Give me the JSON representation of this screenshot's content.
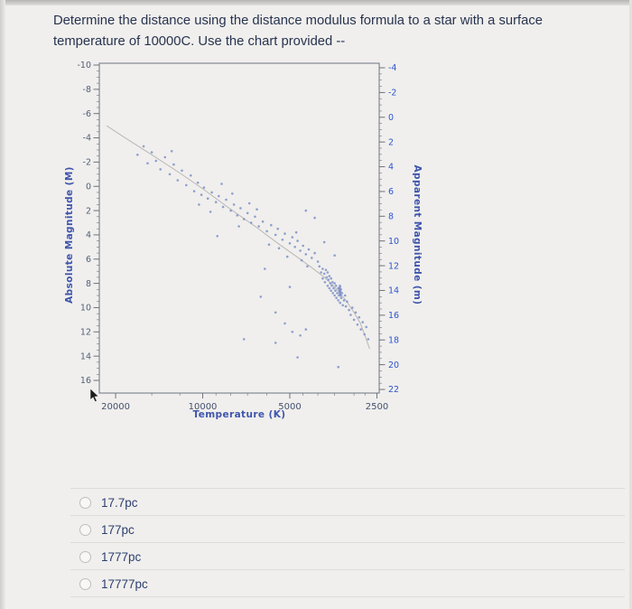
{
  "page": {
    "question": {
      "line1": "Determine the distance using the distance modulus formula to a star with a surface",
      "line2": "temperature of 10000C. Use the chart provided --"
    },
    "options": [
      {
        "label": "17.7pc"
      },
      {
        "label": "177pc"
      },
      {
        "label": "1777pc"
      },
      {
        "label": "17777pc"
      }
    ]
  },
  "chart_data": {
    "type": "scatter",
    "title": "",
    "x_axis": {
      "label": "Temperature (K)",
      "scale": "log",
      "reversed": true,
      "ticks": [
        20000,
        10000,
        5000,
        2500
      ],
      "minor_ticks": [
        15000,
        12000,
        9000,
        8000,
        7000,
        6000,
        4500,
        4000,
        3500,
        3000,
        2750
      ],
      "range": [
        22770,
        2455
      ]
    },
    "y_left": {
      "label": "Absolute Magnitude (M)",
      "ticks": [
        -10,
        -8,
        -6,
        -4,
        -2,
        0,
        2,
        4,
        6,
        8,
        10,
        12,
        14,
        16
      ],
      "range": [
        -10,
        16
      ]
    },
    "y_right": {
      "label": "Apparent Magnitude (m)",
      "ticks": [
        -4,
        -2,
        0,
        2,
        4,
        6,
        8,
        10,
        12,
        14,
        16,
        18,
        20,
        22
      ],
      "range": [
        -4,
        22
      ]
    },
    "colors": {
      "axis": "#6d7380",
      "left_ticks": "#545f78",
      "right_ticks": "#2f55cf",
      "x_ticks": "#44506e",
      "titles": "#3f55ad",
      "points": "#7e90c8",
      "line": "#b3b1ae"
    },
    "points": [
      [
        16800,
        -2.6
      ],
      [
        16000,
        -3.3
      ],
      [
        15500,
        -1.9
      ],
      [
        15000,
        -2.8
      ],
      [
        14500,
        -2.1
      ],
      [
        14000,
        -1.4
      ],
      [
        13500,
        -2.4
      ],
      [
        13000,
        -1.0
      ],
      [
        12600,
        -1.8
      ],
      [
        12200,
        -0.5
      ],
      [
        11800,
        -1.3
      ],
      [
        11400,
        -0.1
      ],
      [
        11000,
        -0.9
      ],
      [
        10700,
        0.4
      ],
      [
        10400,
        -0.3
      ],
      [
        10100,
        0.7
      ],
      [
        9900,
        0.1
      ],
      [
        9600,
        1.0
      ],
      [
        9300,
        0.5
      ],
      [
        9000,
        1.3
      ],
      [
        8800,
        0.8
      ],
      [
        8500,
        1.7
      ],
      [
        8300,
        1.1
      ],
      [
        8000,
        2.0
      ],
      [
        7800,
        1.5
      ],
      [
        7600,
        2.4
      ],
      [
        7400,
        1.8
      ],
      [
        7200,
        2.7
      ],
      [
        7000,
        2.2
      ],
      [
        6800,
        3.0
      ],
      [
        6600,
        2.5
      ],
      [
        6400,
        3.3
      ],
      [
        6200,
        2.9
      ],
      [
        6000,
        3.7
      ],
      [
        5800,
        3.2
      ],
      [
        5600,
        4.0
      ],
      [
        5500,
        3.5
      ],
      [
        5300,
        4.4
      ],
      [
        5200,
        3.9
      ],
      [
        5000,
        4.7
      ],
      [
        4900,
        4.2
      ],
      [
        4800,
        5.0
      ],
      [
        4700,
        4.5
      ],
      [
        4600,
        5.3
      ],
      [
        4500,
        4.9
      ],
      [
        4400,
        5.6
      ],
      [
        4300,
        5.2
      ],
      [
        4200,
        5.9
      ],
      [
        4100,
        5.5
      ],
      [
        4000,
        6.2
      ],
      [
        9400,
        2.1
      ],
      [
        8600,
        -0.2
      ],
      [
        7500,
        3.3
      ],
      [
        6500,
        1.9
      ],
      [
        5900,
        4.8
      ],
      [
        5100,
        5.8
      ],
      [
        4750,
        3.8
      ],
      [
        4350,
        6.6
      ],
      [
        6900,
        1.4
      ],
      [
        7900,
        0.6
      ],
      [
        10300,
        1.5
      ],
      [
        12800,
        -2.9
      ],
      [
        5450,
        5.1
      ],
      [
        4550,
        6.1
      ],
      [
        3950,
        6.6
      ],
      [
        3900,
        7.1
      ],
      [
        3850,
        6.8
      ],
      [
        3850,
        7.6
      ],
      [
        3800,
        7.2
      ],
      [
        3780,
        7.9
      ],
      [
        3750,
        6.9
      ],
      [
        3730,
        7.5
      ],
      [
        3700,
        8.2
      ],
      [
        3700,
        7.1
      ],
      [
        3680,
        7.7
      ],
      [
        3650,
        8.4
      ],
      [
        3650,
        7.4
      ],
      [
        3620,
        8.0
      ],
      [
        3600,
        8.6
      ],
      [
        3600,
        7.6
      ],
      [
        3580,
        8.2
      ],
      [
        3560,
        7.9
      ],
      [
        3550,
        8.8
      ],
      [
        3530,
        8.4
      ],
      [
        3500,
        8.0
      ],
      [
        3500,
        9.0
      ],
      [
        3480,
        8.6
      ],
      [
        3460,
        8.2
      ],
      [
        3450,
        9.2
      ],
      [
        3430,
        8.8
      ],
      [
        3400,
        8.4
      ],
      [
        3400,
        9.4
      ],
      [
        3380,
        9.0
      ],
      [
        3350,
        8.6
      ],
      [
        3350,
        9.6
      ],
      [
        3320,
        9.2
      ],
      [
        3300,
        8.8
      ],
      [
        3280,
        9.8
      ],
      [
        3250,
        9.4
      ],
      [
        3220,
        9.0
      ],
      [
        3200,
        9.9
      ],
      [
        3170,
        9.5
      ],
      [
        3350,
        8.3
      ],
      [
        3360,
        8.5
      ],
      [
        3340,
        8.7
      ],
      [
        3330,
        8.5
      ],
      [
        3370,
        8.6
      ],
      [
        3345,
        8.9
      ],
      [
        3365,
        8.8
      ],
      [
        3355,
        8.2
      ],
      [
        3335,
        9.0
      ],
      [
        3375,
        8.4
      ],
      [
        3120,
        10.2
      ],
      [
        3080,
        10.6
      ],
      [
        3040,
        10.0
      ],
      [
        3000,
        11.0
      ],
      [
        2960,
        10.4
      ],
      [
        2920,
        11.4
      ],
      [
        2880,
        10.8
      ],
      [
        2840,
        11.8
      ],
      [
        2800,
        11.2
      ],
      [
        2760,
        12.2
      ],
      [
        2720,
        11.6
      ],
      [
        2680,
        12.6
      ],
      [
        5600,
        10.4
      ],
      [
        5200,
        11.3
      ],
      [
        4900,
        12.0
      ],
      [
        4600,
        12.3
      ],
      [
        4400,
        11.8
      ],
      [
        6300,
        9.1
      ],
      [
        7200,
        12.6
      ],
      [
        3400,
        14.9
      ],
      [
        5600,
        12.9
      ],
      [
        4700,
        14.1
      ],
      [
        4100,
        2.6
      ],
      [
        4400,
        2.0
      ],
      [
        3800,
        4.6
      ],
      [
        3500,
        5.7
      ],
      [
        8900,
        4.1
      ],
      [
        6100,
        6.8
      ],
      [
        5000,
        8.3
      ]
    ],
    "fit_line": [
      [
        21500,
        -5.0
      ],
      [
        18000,
        -3.8
      ],
      [
        15000,
        -2.6
      ],
      [
        12000,
        -1.1
      ],
      [
        10000,
        0.2
      ],
      [
        8000,
        1.9
      ],
      [
        6500,
        3.4
      ],
      [
        5500,
        4.7
      ],
      [
        4800,
        5.7
      ],
      [
        4200,
        6.7
      ],
      [
        3800,
        7.5
      ],
      [
        3500,
        8.3
      ],
      [
        3200,
        9.4
      ],
      [
        3000,
        10.4
      ],
      [
        2850,
        11.3
      ],
      [
        2750,
        12.3
      ],
      [
        2650,
        13.4
      ]
    ]
  }
}
